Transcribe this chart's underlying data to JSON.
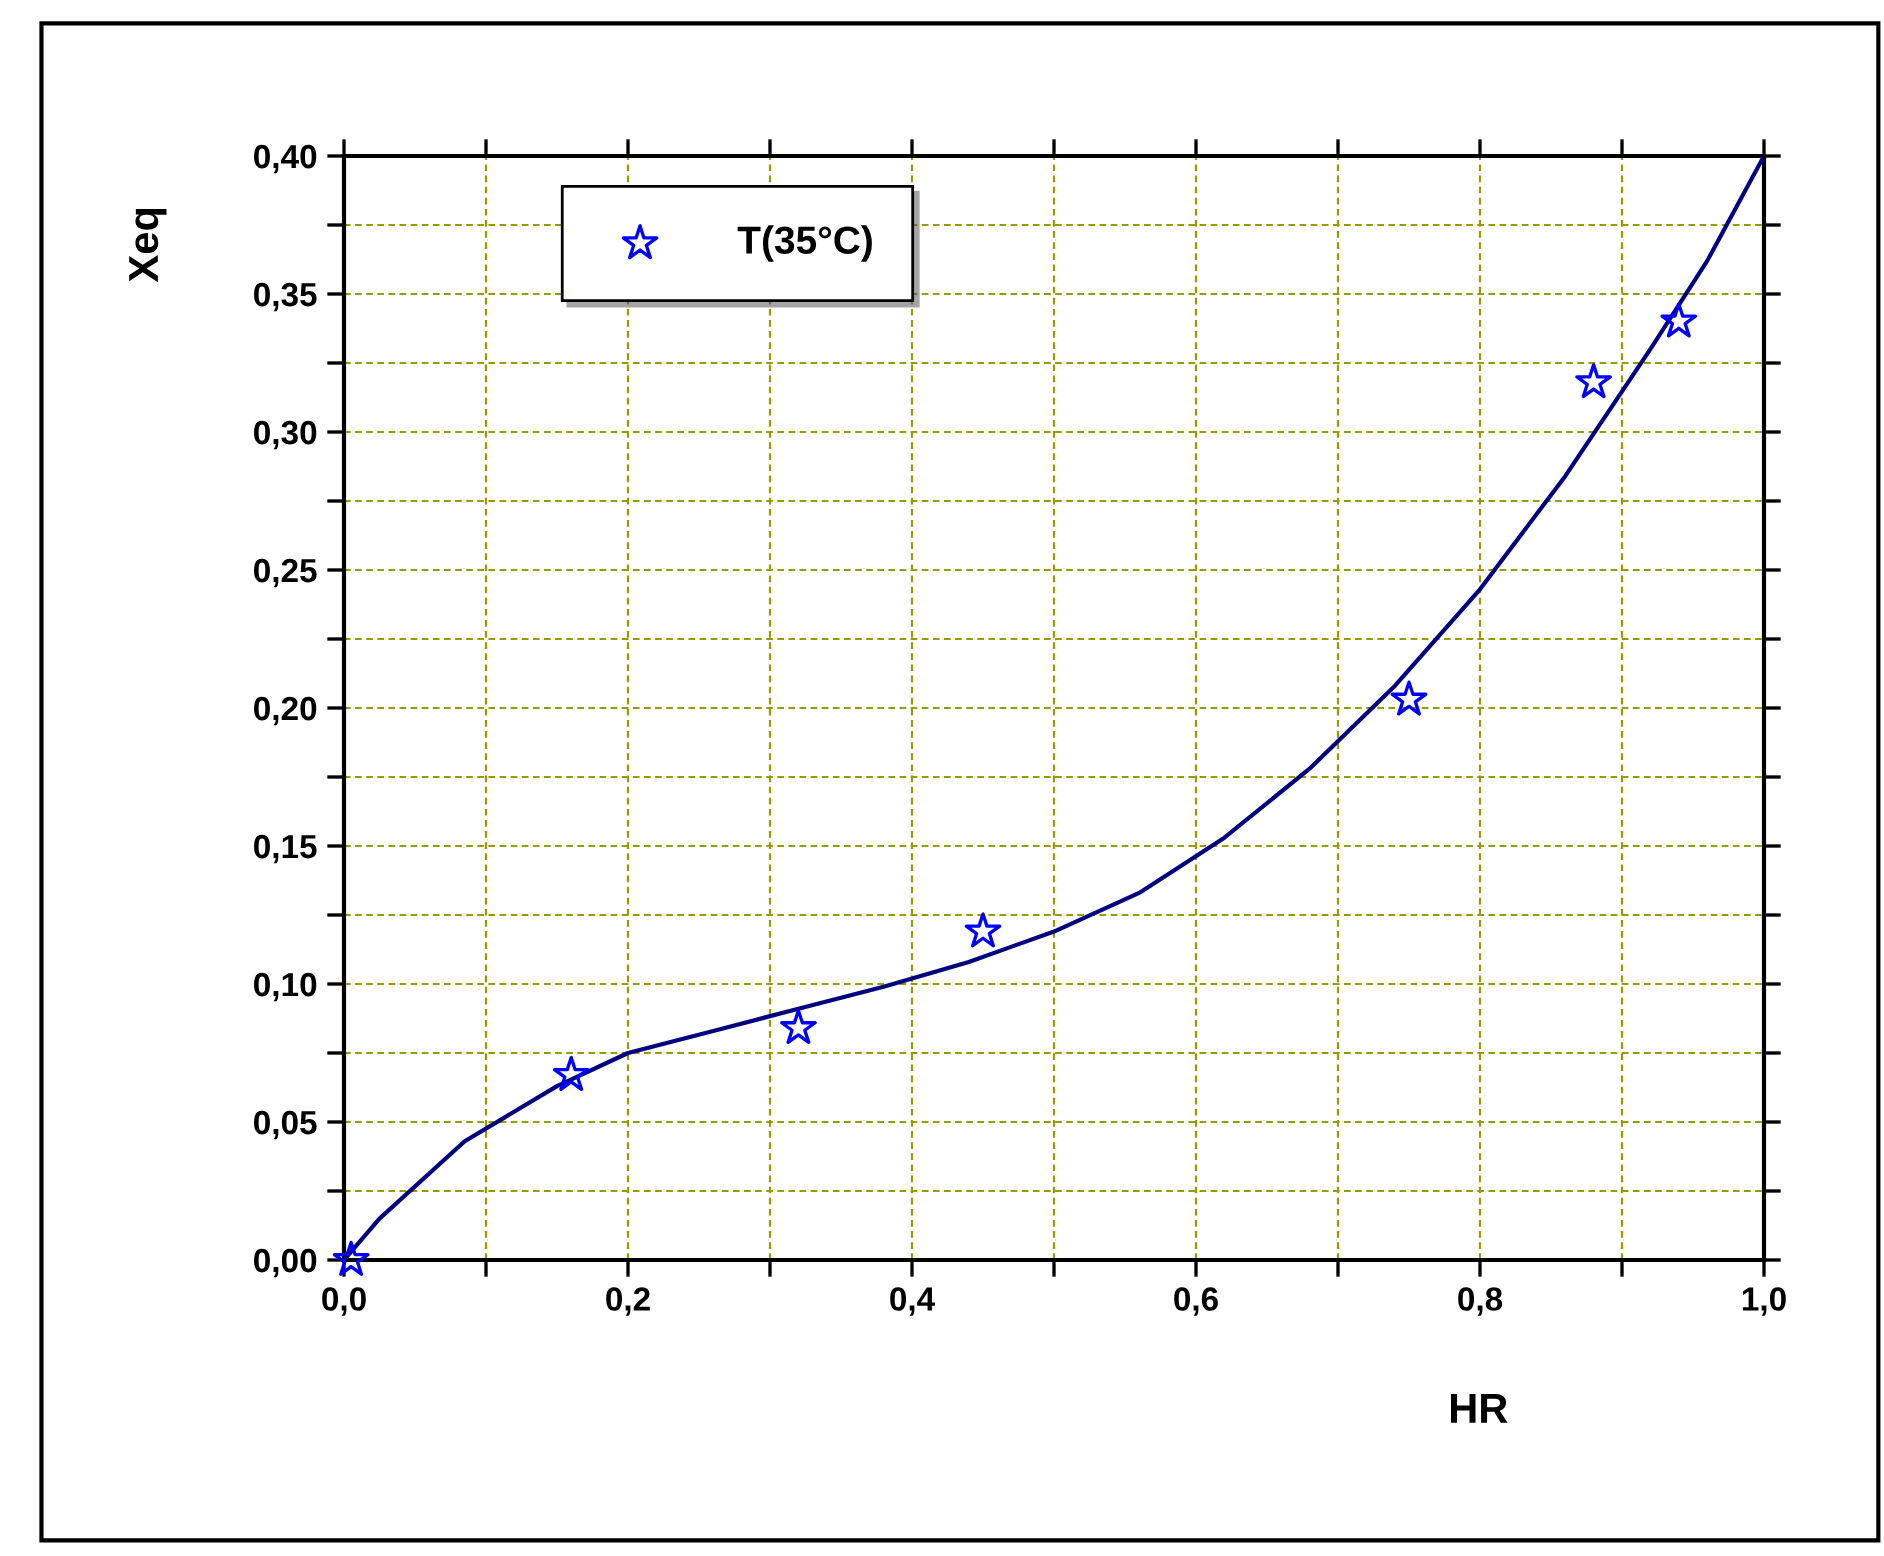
{
  "chart_data": {
    "type": "scatter",
    "xlabel": "HR",
    "ylabel": "Xeq",
    "xlim": [
      0,
      1
    ],
    "ylim": [
      0,
      0.4
    ],
    "xticks": [
      {
        "value": 0,
        "label": "0,0"
      },
      {
        "value": 0.1,
        "label": null
      },
      {
        "value": 0.2,
        "label": "0,2"
      },
      {
        "value": 0.3,
        "label": null
      },
      {
        "value": 0.4,
        "label": "0,4"
      },
      {
        "value": 0.5,
        "label": null
      },
      {
        "value": 0.6,
        "label": "0,6"
      },
      {
        "value": 0.7,
        "label": null
      },
      {
        "value": 0.8,
        "label": "0,8"
      },
      {
        "value": 0.9,
        "label": null
      },
      {
        "value": 1.0,
        "label": "1,0"
      }
    ],
    "yticks": [
      {
        "value": 0,
        "label": "0,00"
      },
      {
        "value": 0.025,
        "label": null
      },
      {
        "value": 0.05,
        "label": "0,05"
      },
      {
        "value": 0.075,
        "label": null
      },
      {
        "value": 0.1,
        "label": "0,10"
      },
      {
        "value": 0.125,
        "label": null
      },
      {
        "value": 0.15,
        "label": "0,15"
      },
      {
        "value": 0.175,
        "label": null
      },
      {
        "value": 0.2,
        "label": "0,20"
      },
      {
        "value": 0.225,
        "label": null
      },
      {
        "value": 0.25,
        "label": "0,25"
      },
      {
        "value": 0.275,
        "label": null
      },
      {
        "value": 0.3,
        "label": "0,30"
      },
      {
        "value": 0.325,
        "label": null
      },
      {
        "value": 0.35,
        "label": "0,35"
      },
      {
        "value": 0.375,
        "label": null
      },
      {
        "value": 0.4,
        "label": "0,40"
      }
    ],
    "grid": true,
    "legend": "top left",
    "series": [
      {
        "name": "T(35°C)",
        "marker": "star",
        "color": "#0000ff",
        "x": [
          0.005,
          0.16,
          0.32,
          0.45,
          0.75,
          0.88,
          0.94
        ],
        "values": [
          0.0,
          0.067,
          0.084,
          0.119,
          0.203,
          0.318,
          0.34
        ]
      },
      {
        "type": "line",
        "line_style": "solid",
        "color": "#000080",
        "x": [
          0,
          0.025,
          0.085,
          0.15,
          0.2,
          0.26,
          0.32,
          0.38,
          0.44,
          0.5,
          0.56,
          0.62,
          0.68,
          0.74,
          0.8,
          0.86,
          0.92,
          0.96,
          1.0
        ],
        "values": [
          0,
          0.015,
          0.043,
          0.063,
          0.075,
          0.083,
          0.091,
          0.099,
          0.108,
          0.119,
          0.133,
          0.153,
          0.178,
          0.208,
          0.243,
          0.284,
          0.33,
          0.362,
          0.4
        ]
      }
    ]
  }
}
